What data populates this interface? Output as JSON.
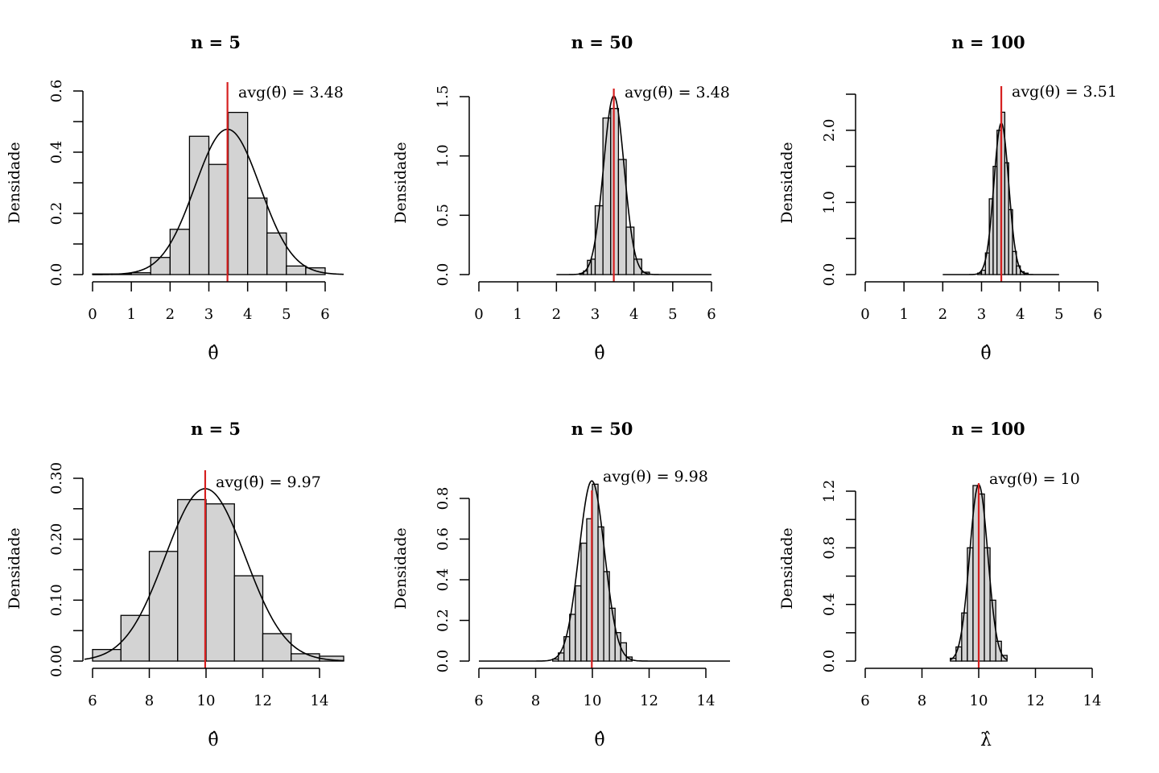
{
  "chart_data": [
    {
      "type": "bar",
      "title": "n = 5",
      "xlabel": "θ̂",
      "ylabel": "Densidade",
      "xlim": [
        0,
        6.5
      ],
      "ylim": [
        0,
        0.6
      ],
      "xticks": [
        0,
        1,
        2,
        3,
        4,
        5,
        6
      ],
      "yticks": [
        0,
        0.1,
        0.2,
        0.3,
        0.4,
        0.5,
        0.6
      ],
      "ytick_labels": [
        "0.0",
        "",
        "0.2",
        "",
        "0.4",
        "",
        "0.6"
      ],
      "bins": [
        {
          "x0": 0.0,
          "x1": 0.5,
          "density": 0.002
        },
        {
          "x0": 0.5,
          "x1": 1.0,
          "density": 0.002
        },
        {
          "x0": 1.0,
          "x1": 1.5,
          "density": 0.006
        },
        {
          "x0": 1.5,
          "x1": 2.0,
          "density": 0.056
        },
        {
          "x0": 2.0,
          "x1": 2.5,
          "density": 0.148
        },
        {
          "x0": 2.5,
          "x1": 3.0,
          "density": 0.452
        },
        {
          "x0": 3.0,
          "x1": 3.5,
          "density": 0.36
        },
        {
          "x0": 3.5,
          "x1": 4.0,
          "density": 0.53
        },
        {
          "x0": 4.0,
          "x1": 4.5,
          "density": 0.25
        },
        {
          "x0": 4.5,
          "x1": 5.0,
          "density": 0.136
        },
        {
          "x0": 5.0,
          "x1": 5.5,
          "density": 0.028
        },
        {
          "x0": 5.5,
          "x1": 6.0,
          "density": 0.022
        }
      ],
      "normal_curve": {
        "mean": 3.48,
        "sd": 0.84,
        "from": 0,
        "to": 6.5
      },
      "mean_line": 3.48,
      "annotation_prefix": "avg",
      "annotation_symbol": "θ̈",
      "annotation_value": "= 3.48"
    },
    {
      "type": "bar",
      "title": "n = 50",
      "xlabel": "θ̂",
      "ylabel": "Densidade",
      "xlim": [
        0,
        6
      ],
      "ylim": [
        0,
        1.5
      ],
      "xticks": [
        0,
        1,
        2,
        3,
        4,
        5,
        6
      ],
      "yticks": [
        0,
        0.5,
        1.0,
        1.5
      ],
      "ytick_labels": [
        "0.0",
        "0.5",
        "1.0",
        "1.5"
      ],
      "bins": [
        {
          "x0": 2.6,
          "x1": 2.7,
          "density": 0.01
        },
        {
          "x0": 2.7,
          "x1": 2.8,
          "density": 0.03
        },
        {
          "x0": 2.8,
          "x1": 2.9,
          "density": 0.12
        },
        {
          "x0": 2.9,
          "x1": 3.0,
          "density": 0.13
        },
        {
          "x0": 3.0,
          "x1": 3.2,
          "density": 0.58
        },
        {
          "x0": 3.2,
          "x1": 3.4,
          "density": 1.32
        },
        {
          "x0": 3.4,
          "x1": 3.6,
          "density": 1.4
        },
        {
          "x0": 3.6,
          "x1": 3.8,
          "density": 0.97
        },
        {
          "x0": 3.8,
          "x1": 4.0,
          "density": 0.4
        },
        {
          "x0": 4.0,
          "x1": 4.2,
          "density": 0.13
        },
        {
          "x0": 4.2,
          "x1": 4.4,
          "density": 0.02
        }
      ],
      "normal_curve": {
        "mean": 3.48,
        "sd": 0.265,
        "from": 2,
        "to": 6
      },
      "mean_line": 3.48,
      "annotation_prefix": "avg",
      "annotation_symbol": "θ̈",
      "annotation_value": "= 3.48"
    },
    {
      "type": "bar",
      "title": "n = 100",
      "xlabel": "θ̂",
      "ylabel": "Densidade",
      "xlim": [
        0,
        6
      ],
      "ylim": [
        0,
        2.5
      ],
      "xticks": [
        0,
        1,
        2,
        3,
        4,
        5,
        6
      ],
      "yticks": [
        0,
        0.5,
        1.0,
        1.5,
        2.0,
        2.5
      ],
      "ytick_labels": [
        "0.0",
        "",
        "1.0",
        "",
        "2.0",
        ""
      ],
      "bins": [
        {
          "x0": 2.9,
          "x1": 3.0,
          "density": 0.02
        },
        {
          "x0": 3.0,
          "x1": 3.1,
          "density": 0.06
        },
        {
          "x0": 3.1,
          "x1": 3.2,
          "density": 0.3
        },
        {
          "x0": 3.2,
          "x1": 3.3,
          "density": 1.05
        },
        {
          "x0": 3.3,
          "x1": 3.4,
          "density": 1.5
        },
        {
          "x0": 3.4,
          "x1": 3.5,
          "density": 2.0
        },
        {
          "x0": 3.5,
          "x1": 3.6,
          "density": 2.25
        },
        {
          "x0": 3.6,
          "x1": 3.7,
          "density": 1.55
        },
        {
          "x0": 3.7,
          "x1": 3.8,
          "density": 0.9
        },
        {
          "x0": 3.8,
          "x1": 3.9,
          "density": 0.32
        },
        {
          "x0": 3.9,
          "x1": 4.0,
          "density": 0.12
        },
        {
          "x0": 4.0,
          "x1": 4.1,
          "density": 0.04
        },
        {
          "x0": 4.1,
          "x1": 4.2,
          "density": 0.02
        }
      ],
      "normal_curve": {
        "mean": 3.51,
        "sd": 0.19,
        "from": 2,
        "to": 5
      },
      "mean_line": 3.51,
      "annotation_prefix": "avg",
      "annotation_symbol": "θ",
      "annotation_value": "= 3.51"
    },
    {
      "type": "bar",
      "title": "n = 5",
      "xlabel": "θ̂",
      "ylabel": "Densidade",
      "xlim": [
        5.7,
        14.9
      ],
      "ylim": [
        0,
        0.3
      ],
      "xticks": [
        6,
        8,
        10,
        12,
        14
      ],
      "yticks": [
        0,
        0.05,
        0.1,
        0.15,
        0.2,
        0.25,
        0.3
      ],
      "ytick_labels": [
        "0.00",
        "",
        "0.10",
        "",
        "0.20",
        "",
        "0.30"
      ],
      "bins": [
        {
          "x0": 6,
          "x1": 7,
          "density": 0.019
        },
        {
          "x0": 7,
          "x1": 8,
          "density": 0.075
        },
        {
          "x0": 8,
          "x1": 9,
          "density": 0.18
        },
        {
          "x0": 9,
          "x1": 10,
          "density": 0.265
        },
        {
          "x0": 10,
          "x1": 11,
          "density": 0.258
        },
        {
          "x0": 11,
          "x1": 12,
          "density": 0.14
        },
        {
          "x0": 12,
          "x1": 13,
          "density": 0.045
        },
        {
          "x0": 13,
          "x1": 14,
          "density": 0.012
        },
        {
          "x0": 14,
          "x1": 15,
          "density": 0.008
        }
      ],
      "normal_curve": {
        "mean": 9.97,
        "sd": 1.41,
        "from": 5.7,
        "to": 14.9
      },
      "mean_line": 9.97,
      "annotation_prefix": "avg",
      "annotation_symbol": "θ̈",
      "annotation_value": "= 9.97"
    },
    {
      "type": "bar",
      "title": "n = 50",
      "xlabel": "θ̂",
      "ylabel": "Densidade",
      "xlim": [
        6,
        14.9
      ],
      "ylim": [
        0,
        0.8
      ],
      "xticks": [
        6,
        8,
        10,
        12,
        14
      ],
      "yticks": [
        0,
        0.2,
        0.4,
        0.6,
        0.8
      ],
      "ytick_labels": [
        "0.0",
        "0.2",
        "0.4",
        "0.6",
        "0.8"
      ],
      "bins": [
        {
          "x0": 8.6,
          "x1": 8.8,
          "density": 0.01
        },
        {
          "x0": 8.8,
          "x1": 9.0,
          "density": 0.04
        },
        {
          "x0": 9.0,
          "x1": 9.2,
          "density": 0.12
        },
        {
          "x0": 9.2,
          "x1": 9.4,
          "density": 0.23
        },
        {
          "x0": 9.4,
          "x1": 9.6,
          "density": 0.37
        },
        {
          "x0": 9.6,
          "x1": 9.8,
          "density": 0.58
        },
        {
          "x0": 9.8,
          "x1": 10.0,
          "density": 0.7
        },
        {
          "x0": 10.0,
          "x1": 10.2,
          "density": 0.87
        },
        {
          "x0": 10.2,
          "x1": 10.4,
          "density": 0.66
        },
        {
          "x0": 10.4,
          "x1": 10.6,
          "density": 0.44
        },
        {
          "x0": 10.6,
          "x1": 10.8,
          "density": 0.26
        },
        {
          "x0": 10.8,
          "x1": 11.0,
          "density": 0.14
        },
        {
          "x0": 11.0,
          "x1": 11.2,
          "density": 0.09
        },
        {
          "x0": 11.2,
          "x1": 11.4,
          "density": 0.02
        }
      ],
      "normal_curve": {
        "mean": 9.98,
        "sd": 0.45,
        "from": 6,
        "to": 14.9
      },
      "mean_line": 9.98,
      "annotation_prefix": "avg",
      "annotation_symbol": "θ",
      "annotation_value": "= 9.98"
    },
    {
      "type": "bar",
      "title": "n = 100",
      "xlabel": "λ̂",
      "ylabel": "Densidade",
      "xlim": [
        6,
        14.8
      ],
      "ylim": [
        0,
        1.2
      ],
      "xticks": [
        6,
        8,
        10,
        12,
        14
      ],
      "yticks": [
        0,
        0.2,
        0.4,
        0.6,
        0.8,
        1.0,
        1.2
      ],
      "ytick_labels": [
        "0.0",
        "",
        "0.4",
        "",
        "0.8",
        "",
        "1.2"
      ],
      "bins": [
        {
          "x0": 9.0,
          "x1": 9.2,
          "density": 0.02
        },
        {
          "x0": 9.2,
          "x1": 9.4,
          "density": 0.1
        },
        {
          "x0": 9.4,
          "x1": 9.6,
          "density": 0.34
        },
        {
          "x0": 9.6,
          "x1": 9.8,
          "density": 0.8
        },
        {
          "x0": 9.8,
          "x1": 10.0,
          "density": 1.24
        },
        {
          "x0": 10.0,
          "x1": 10.2,
          "density": 1.18
        },
        {
          "x0": 10.2,
          "x1": 10.4,
          "density": 0.8
        },
        {
          "x0": 10.4,
          "x1": 10.6,
          "density": 0.43
        },
        {
          "x0": 10.6,
          "x1": 10.8,
          "density": 0.14
        },
        {
          "x0": 10.8,
          "x1": 11.0,
          "density": 0.04
        }
      ],
      "normal_curve": {
        "mean": 10.0,
        "sd": 0.32,
        "from": 9,
        "to": 11
      },
      "mean_line": 10.0,
      "annotation_prefix": "avg",
      "annotation_symbol": "θ",
      "annotation_value": "= 10"
    }
  ]
}
